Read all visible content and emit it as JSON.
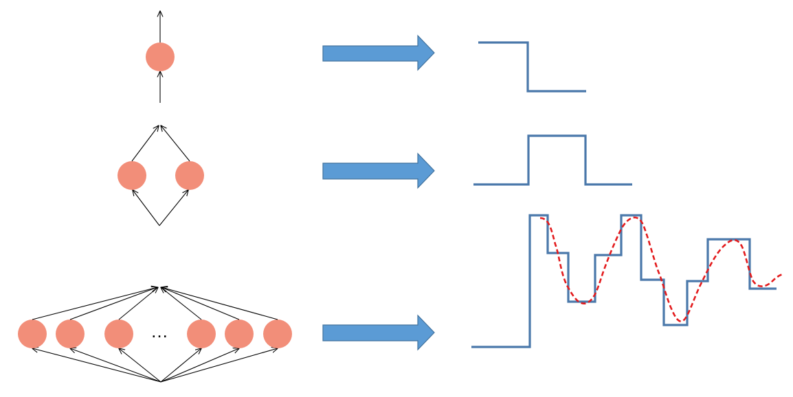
{
  "diagram": {
    "rows": [
      {
        "hidden_neurons": 1,
        "output_shape": "step-down"
      },
      {
        "hidden_neurons": 2,
        "output_shape": "bump"
      },
      {
        "hidden_neurons": "many",
        "output_shape": "step-approximation-of-curve"
      }
    ],
    "ellipsis": "…",
    "colors": {
      "neuron": "#f28e79",
      "connection": "#000000",
      "arrow_fill": "#5b9bd5",
      "step_function": "#4a78aa",
      "target_curve": "#e31a1c"
    }
  }
}
